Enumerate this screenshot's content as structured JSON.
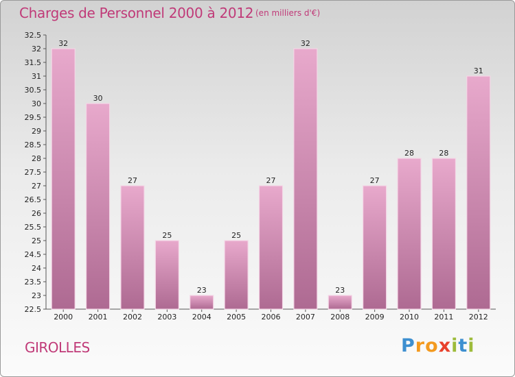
{
  "header": {
    "title": "Charges de Personnel 2000 à 2012",
    "unit": "(en milliers d'€)"
  },
  "footer": {
    "commune": "GIROLLES",
    "logo_letters": [
      "P",
      "r",
      "o",
      "x",
      "i",
      "t",
      "i"
    ],
    "logo_colors": [
      "#3d8fd0",
      "#f39a1f",
      "#f39a1f",
      "#e8412c",
      "#9dbb3a",
      "#3d8fd0",
      "#9dbb3a"
    ]
  },
  "colors": {
    "bar_top": "#e8a9cc",
    "bar_bottom": "#ae6a92",
    "accent": "#c03a78"
  },
  "chart_data": {
    "type": "bar",
    "title": "Charges de Personnel 2000 à 2012",
    "subtitle": "(en milliers d'€)",
    "categories": [
      "2000",
      "2001",
      "2002",
      "2003",
      "2004",
      "2005",
      "2006",
      "2007",
      "2008",
      "2009",
      "2010",
      "2011",
      "2012"
    ],
    "values": [
      32,
      30,
      27,
      25,
      23,
      25,
      27,
      32,
      23,
      27,
      28,
      28,
      31
    ],
    "ylim": [
      22.5,
      32.5
    ],
    "ytick_step": 0.5,
    "yticks": [
      "22.5",
      "23",
      "23.5",
      "24",
      "24.5",
      "25",
      "25.5",
      "26",
      "26.5",
      "27",
      "27.5",
      "28",
      "28.5",
      "29",
      "29.5",
      "30",
      "30.5",
      "31",
      "31.5",
      "32",
      "32.5"
    ],
    "grid": false,
    "legend": "none"
  }
}
